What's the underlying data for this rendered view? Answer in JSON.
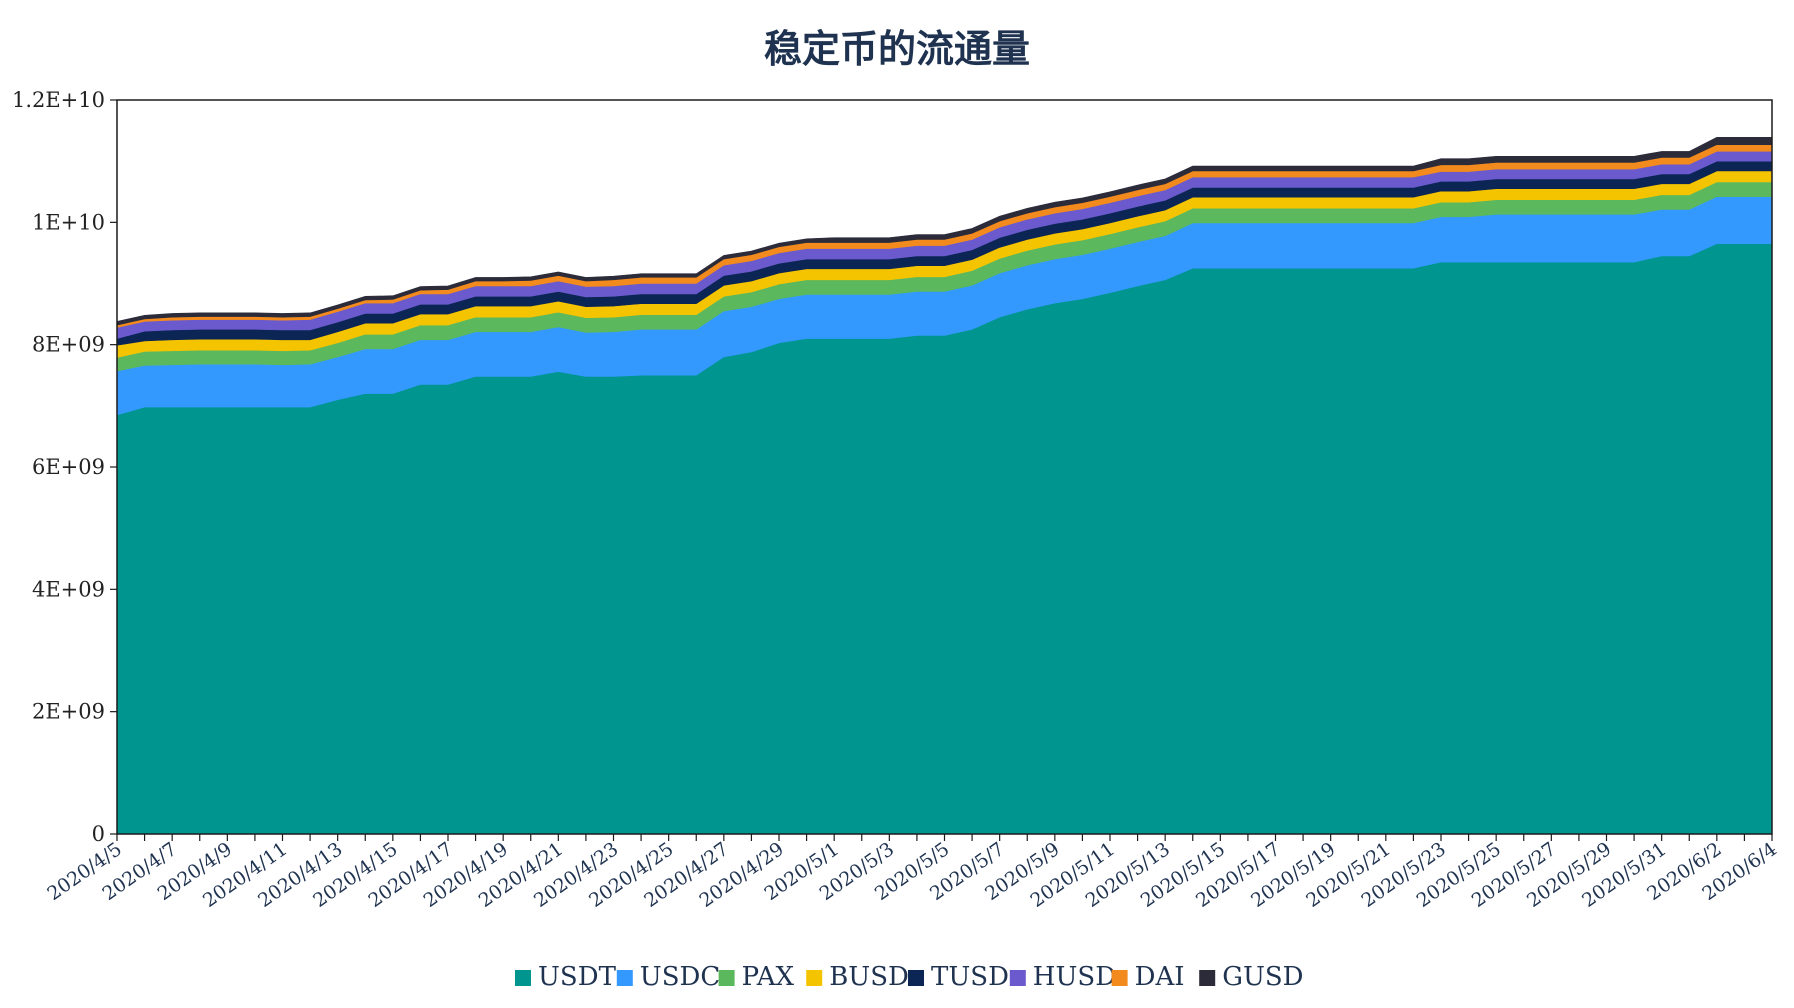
{
  "chart_data": {
    "type": "area",
    "stacked": true,
    "title": "稳定币的流通量",
    "xlabel": "",
    "ylabel": "",
    "ylim": [
      0,
      12000000000
    ],
    "y_ticks": [
      {
        "value": 0,
        "label": "0"
      },
      {
        "value": 2000000000,
        "label": "2E+09"
      },
      {
        "value": 4000000000,
        "label": "4E+09"
      },
      {
        "value": 6000000000,
        "label": "6E+09"
      },
      {
        "value": 8000000000,
        "label": "8E+09"
      },
      {
        "value": 10000000000,
        "label": "1E+10"
      },
      {
        "value": 12000000000,
        "label": "1.2E+10"
      }
    ],
    "grid": false,
    "legend": "bottom",
    "x": [
      "2020/4/5",
      "2020/4/6",
      "2020/4/7",
      "2020/4/8",
      "2020/4/9",
      "2020/4/10",
      "2020/4/11",
      "2020/4/12",
      "2020/4/13",
      "2020/4/14",
      "2020/4/15",
      "2020/4/16",
      "2020/4/17",
      "2020/4/18",
      "2020/4/19",
      "2020/4/20",
      "2020/4/21",
      "2020/4/22",
      "2020/4/23",
      "2020/4/24",
      "2020/4/25",
      "2020/4/26",
      "2020/4/27",
      "2020/4/28",
      "2020/4/29",
      "2020/4/30",
      "2020/5/1",
      "2020/5/2",
      "2020/5/3",
      "2020/5/4",
      "2020/5/5",
      "2020/5/6",
      "2020/5/7",
      "2020/5/8",
      "2020/5/9",
      "2020/5/10",
      "2020/5/11",
      "2020/5/12",
      "2020/5/13",
      "2020/5/14",
      "2020/5/15",
      "2020/5/16",
      "2020/5/17",
      "2020/5/18",
      "2020/5/19",
      "2020/5/20",
      "2020/5/21",
      "2020/5/22",
      "2020/5/23",
      "2020/5/24",
      "2020/5/25",
      "2020/5/26",
      "2020/5/27",
      "2020/5/28",
      "2020/5/29",
      "2020/5/30",
      "2020/5/31",
      "2020/6/1",
      "2020/6/2",
      "2020/6/3",
      "2020/6/4"
    ],
    "x_tick_labels": [
      "2020/4/5",
      "2020/4/7",
      "2020/4/9",
      "2020/4/11",
      "2020/4/13",
      "2020/4/15",
      "2020/4/17",
      "2020/4/19",
      "2020/4/21",
      "2020/4/23",
      "2020/4/25",
      "2020/4/27",
      "2020/4/29",
      "2020/5/1",
      "2020/5/3",
      "2020/5/5",
      "2020/5/7",
      "2020/5/9",
      "2020/5/11",
      "2020/5/13",
      "2020/5/15",
      "2020/5/17",
      "2020/5/19",
      "2020/5/21",
      "2020/5/23",
      "2020/5/25",
      "2020/5/27",
      "2020/5/29",
      "2020/5/31",
      "2020/6/2",
      "2020/6/4"
    ],
    "series": [
      {
        "name": "USDT",
        "color": "#00958f",
        "values": [
          6850000000,
          6980000000,
          6980000000,
          6980000000,
          6980000000,
          6980000000,
          6980000000,
          6980000000,
          7100000000,
          7200000000,
          7200000000,
          7350000000,
          7350000000,
          7480000000,
          7480000000,
          7480000000,
          7560000000,
          7480000000,
          7480000000,
          7500000000,
          7500000000,
          7500000000,
          7800000000,
          7880000000,
          8030000000,
          8100000000,
          8100000000,
          8100000000,
          8100000000,
          8150000000,
          8150000000,
          8250000000,
          8450000000,
          8580000000,
          8680000000,
          8750000000,
          8850000000,
          8960000000,
          9060000000,
          9250000000,
          9250000000,
          9250000000,
          9250000000,
          9250000000,
          9250000000,
          9250000000,
          9250000000,
          9250000000,
          9350000000,
          9350000000,
          9350000000,
          9350000000,
          9350000000,
          9350000000,
          9350000000,
          9350000000,
          9450000000,
          9450000000,
          9650000000,
          9650000000,
          9650000000
        ]
      },
      {
        "name": "USDC",
        "color": "#3399ff",
        "values": [
          720000000,
          680000000,
          690000000,
          700000000,
          700000000,
          700000000,
          690000000,
          700000000,
          700000000,
          730000000,
          730000000,
          730000000,
          730000000,
          730000000,
          730000000,
          730000000,
          730000000,
          720000000,
          730000000,
          750000000,
          750000000,
          750000000,
          750000000,
          740000000,
          720000000,
          720000000,
          720000000,
          720000000,
          720000000,
          720000000,
          720000000,
          720000000,
          720000000,
          720000000,
          720000000,
          720000000,
          720000000,
          720000000,
          720000000,
          740000000,
          740000000,
          740000000,
          740000000,
          740000000,
          740000000,
          740000000,
          740000000,
          740000000,
          740000000,
          740000000,
          780000000,
          780000000,
          780000000,
          780000000,
          780000000,
          780000000,
          760000000,
          760000000,
          770000000,
          770000000,
          770000000
        ]
      },
      {
        "name": "PAX",
        "color": "#5cb85c",
        "values": [
          220000000,
          230000000,
          230000000,
          230000000,
          230000000,
          230000000,
          230000000,
          230000000,
          230000000,
          240000000,
          240000000,
          240000000,
          240000000,
          240000000,
          240000000,
          240000000,
          240000000,
          240000000,
          240000000,
          240000000,
          240000000,
          240000000,
          240000000,
          240000000,
          240000000,
          240000000,
          240000000,
          240000000,
          240000000,
          240000000,
          240000000,
          240000000,
          240000000,
          240000000,
          240000000,
          240000000,
          240000000,
          240000000,
          240000000,
          240000000,
          240000000,
          240000000,
          240000000,
          240000000,
          240000000,
          240000000,
          240000000,
          240000000,
          240000000,
          240000000,
          240000000,
          240000000,
          240000000,
          240000000,
          240000000,
          240000000,
          240000000,
          240000000,
          240000000,
          240000000,
          240000000
        ]
      },
      {
        "name": "BUSD",
        "color": "#f5c400",
        "values": [
          200000000,
          170000000,
          180000000,
          180000000,
          180000000,
          180000000,
          180000000,
          170000000,
          180000000,
          180000000,
          180000000,
          180000000,
          180000000,
          180000000,
          180000000,
          180000000,
          180000000,
          180000000,
          180000000,
          180000000,
          180000000,
          180000000,
          180000000,
          180000000,
          180000000,
          180000000,
          180000000,
          180000000,
          180000000,
          180000000,
          180000000,
          180000000,
          180000000,
          180000000,
          180000000,
          180000000,
          180000000,
          180000000,
          180000000,
          180000000,
          180000000,
          180000000,
          180000000,
          180000000,
          180000000,
          180000000,
          180000000,
          180000000,
          180000000,
          180000000,
          180000000,
          180000000,
          180000000,
          180000000,
          180000000,
          180000000,
          180000000,
          180000000,
          180000000,
          180000000,
          180000000
        ]
      },
      {
        "name": "TUSD",
        "color": "#0b2555",
        "values": [
          110000000,
          160000000,
          160000000,
          160000000,
          160000000,
          160000000,
          160000000,
          160000000,
          160000000,
          160000000,
          160000000,
          160000000,
          160000000,
          160000000,
          160000000,
          160000000,
          160000000,
          160000000,
          160000000,
          160000000,
          160000000,
          160000000,
          160000000,
          160000000,
          160000000,
          160000000,
          160000000,
          160000000,
          160000000,
          160000000,
          160000000,
          160000000,
          160000000,
          160000000,
          160000000,
          160000000,
          160000000,
          160000000,
          160000000,
          160000000,
          160000000,
          160000000,
          160000000,
          160000000,
          160000000,
          160000000,
          160000000,
          160000000,
          160000000,
          160000000,
          160000000,
          160000000,
          160000000,
          160000000,
          160000000,
          160000000,
          160000000,
          160000000,
          160000000,
          160000000,
          160000000
        ]
      },
      {
        "name": "HUSD",
        "color": "#6a5acd",
        "values": [
          180000000,
          160000000,
          160000000,
          160000000,
          160000000,
          160000000,
          160000000,
          170000000,
          170000000,
          170000000,
          170000000,
          170000000,
          170000000,
          170000000,
          170000000,
          170000000,
          170000000,
          170000000,
          170000000,
          170000000,
          170000000,
          170000000,
          170000000,
          170000000,
          170000000,
          170000000,
          170000000,
          170000000,
          170000000,
          170000000,
          170000000,
          170000000,
          170000000,
          170000000,
          170000000,
          170000000,
          170000000,
          170000000,
          170000000,
          170000000,
          170000000,
          170000000,
          170000000,
          170000000,
          170000000,
          170000000,
          170000000,
          170000000,
          160000000,
          160000000,
          160000000,
          160000000,
          160000000,
          160000000,
          160000000,
          160000000,
          160000000,
          160000000,
          160000000,
          160000000,
          160000000
        ]
      },
      {
        "name": "DAI",
        "color": "#f28a1d",
        "values": [
          40000000,
          40000000,
          50000000,
          50000000,
          50000000,
          50000000,
          50000000,
          50000000,
          50000000,
          50000000,
          60000000,
          60000000,
          70000000,
          80000000,
          80000000,
          90000000,
          90000000,
          90000000,
          100000000,
          100000000,
          100000000,
          100000000,
          100000000,
          100000000,
          100000000,
          100000000,
          100000000,
          100000000,
          100000000,
          100000000,
          100000000,
          100000000,
          100000000,
          100000000,
          100000000,
          100000000,
          100000000,
          100000000,
          100000000,
          100000000,
          100000000,
          100000000,
          100000000,
          100000000,
          100000000,
          100000000,
          100000000,
          100000000,
          110000000,
          110000000,
          110000000,
          110000000,
          110000000,
          110000000,
          110000000,
          110000000,
          110000000,
          110000000,
          110000000,
          110000000,
          110000000
        ]
      },
      {
        "name": "GUSD",
        "color": "#2b2b3a",
        "values": [
          60000000,
          60000000,
          60000000,
          60000000,
          60000000,
          60000000,
          60000000,
          60000000,
          60000000,
          60000000,
          60000000,
          60000000,
          60000000,
          60000000,
          60000000,
          60000000,
          60000000,
          60000000,
          60000000,
          60000000,
          60000000,
          60000000,
          60000000,
          60000000,
          60000000,
          60000000,
          80000000,
          80000000,
          80000000,
          80000000,
          80000000,
          80000000,
          80000000,
          80000000,
          80000000,
          80000000,
          80000000,
          80000000,
          80000000,
          80000000,
          80000000,
          80000000,
          80000000,
          80000000,
          80000000,
          80000000,
          80000000,
          80000000,
          100000000,
          100000000,
          100000000,
          100000000,
          100000000,
          100000000,
          100000000,
          100000000,
          100000000,
          100000000,
          120000000,
          120000000,
          120000000
        ]
      }
    ]
  }
}
